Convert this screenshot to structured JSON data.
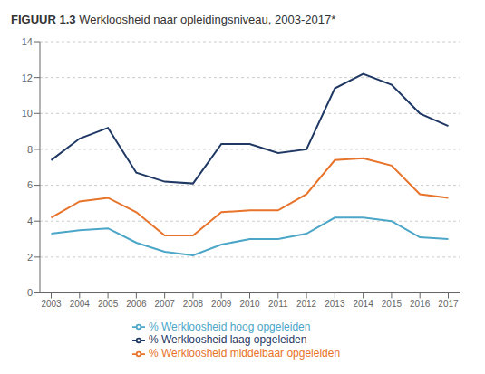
{
  "chart_data": {
    "type": "line",
    "title": "FIGUUR 1.3",
    "subtitle": "Werkloosheid naar opleidingsniveau, 2003-2017*",
    "x": [
      2003,
      2004,
      2005,
      2006,
      2007,
      2008,
      2009,
      2010,
      2011,
      2012,
      2013,
      2014,
      2015,
      2016,
      2017
    ],
    "series": [
      {
        "name": "% Werkloosheid laag opgeleiden",
        "color": "#1f3864",
        "values": [
          7.4,
          8.6,
          9.2,
          6.7,
          6.2,
          6.1,
          8.3,
          8.3,
          7.8,
          8.0,
          11.4,
          12.2,
          11.6,
          10.0,
          9.3
        ]
      },
      {
        "name": "% Werkloosheid middelbaar opgeleiden",
        "color": "#e8732a",
        "values": [
          4.2,
          5.1,
          5.3,
          4.5,
          3.2,
          3.2,
          4.5,
          4.6,
          4.6,
          5.5,
          7.4,
          7.5,
          7.1,
          5.5,
          5.3
        ]
      },
      {
        "name": "% Werkloosheid hoog opgeleiden",
        "color": "#4ba6c8",
        "values": [
          3.3,
          3.5,
          3.6,
          2.8,
          2.3,
          2.1,
          2.7,
          3.0,
          3.0,
          3.3,
          4.2,
          4.2,
          4.0,
          3.1,
          3.0
        ]
      }
    ],
    "xlim": [
      2002.6,
      2017.4
    ],
    "xticks": [
      2003,
      2004,
      2005,
      2006,
      2007,
      2008,
      2009,
      2010,
      2011,
      2012,
      2013,
      2014,
      2015,
      2016,
      2017
    ],
    "ylim": [
      0,
      14
    ],
    "yticks": [
      0,
      2,
      4,
      6,
      8,
      10,
      12,
      14
    ],
    "grid": true,
    "legend": "bottom"
  }
}
